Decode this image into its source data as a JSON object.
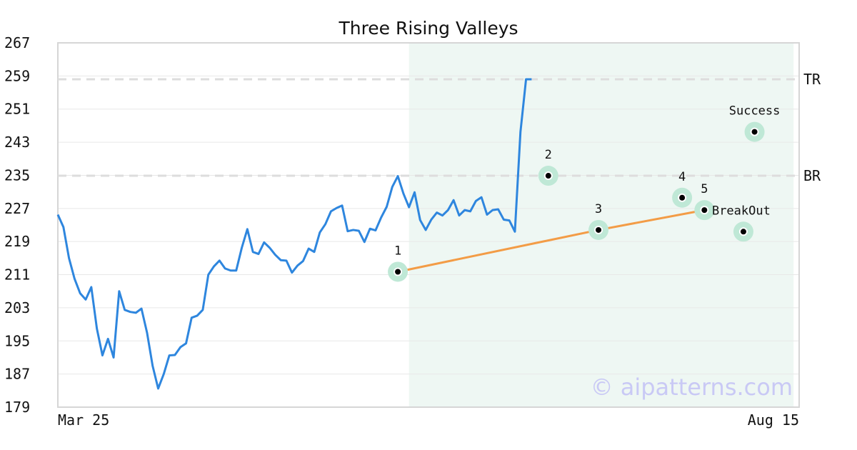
{
  "chart_data": {
    "type": "line",
    "title": "Three Rising Valleys",
    "ylim": [
      179,
      267
    ],
    "yticks": [
      267,
      259,
      251,
      243,
      235,
      227,
      219,
      211,
      203,
      195,
      187,
      179
    ],
    "x_range": [
      "Mar 25",
      "Aug 15"
    ],
    "x_tick_labels": [
      "Mar 25",
      "Aug 15"
    ],
    "grid": true,
    "pattern_region_index": [
      63,
      132
    ],
    "series": [
      {
        "values": [
          225.5,
          222.5,
          215,
          210,
          206.5,
          205,
          208,
          198,
          191.5,
          195.5,
          191,
          207,
          202.5,
          202,
          201.8,
          202.8,
          197,
          189,
          183.5,
          187,
          191.5,
          191.6,
          193.5,
          194.4,
          200.6,
          201.1,
          202.5,
          211,
          213,
          214.4,
          212.5,
          212,
          212,
          217.5,
          222,
          216.5,
          216,
          218.8,
          217.5,
          215.8,
          214.5,
          214.4,
          211.5,
          213.2,
          214.3,
          217.3,
          216.5,
          221.2,
          223.2,
          226.3,
          227.1,
          227.7,
          221.5,
          221.8,
          221.6,
          218.9,
          222.1,
          221.7,
          224.8,
          227.4,
          232.2,
          234.8,
          230.6,
          227.3,
          230.9,
          224.2,
          221.8,
          224.3,
          226,
          225.3,
          226.6,
          229,
          225.3,
          226.6,
          226.3,
          228.8,
          229.7,
          225.5,
          226.6,
          226.8,
          224.3,
          224.1,
          221.4,
          245.5,
          258.2,
          258.2
        ]
      }
    ],
    "trend_line": [
      {
        "index": 61,
        "value": 211.7
      },
      {
        "index": 97,
        "value": 221.8
      },
      {
        "index": 116,
        "value": 226.6
      }
    ],
    "levels": [
      {
        "label": "TR",
        "value": 258.2
      },
      {
        "label": "BR",
        "value": 234.9
      }
    ],
    "annotations": [
      {
        "label": "1",
        "index": 61,
        "value": 211.7
      },
      {
        "label": "2",
        "index": 88,
        "value": 234.9
      },
      {
        "label": "3",
        "index": 97,
        "value": 221.8
      },
      {
        "label": "4",
        "index": 112,
        "value": 229.6
      },
      {
        "label": "5",
        "index": 116,
        "value": 226.6
      },
      {
        "label": "BreakOut",
        "index": 123,
        "value": 221.4
      },
      {
        "label": "Success",
        "index": 125,
        "value": 245.5
      }
    ],
    "watermark": "© aipatterns.com",
    "colors": {
      "line": "#2e86de",
      "trend": "#f39c46",
      "highlight_bg": "#eef7f3",
      "marker_halo": "#bfe8d6",
      "level_line": "#dddddd",
      "grid": "#e8e8e8"
    }
  }
}
